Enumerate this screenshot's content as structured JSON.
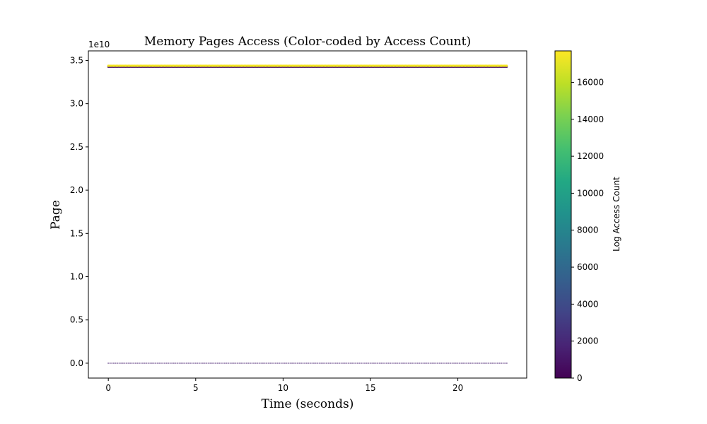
{
  "chart_data": {
    "type": "scatter",
    "title": "Memory Pages Access (Color-coded by Access Count)",
    "xlabel": "Time (seconds)",
    "ylabel": "Page",
    "y_offset_text": "1e10",
    "xlim": [
      -1.14,
      23.94
    ],
    "ylim": [
      -0.172,
      3.61
    ],
    "y_scale_multiplier": 10000000000.0,
    "x_ticks": [
      0,
      5,
      10,
      15,
      20
    ],
    "x_tick_labels": [
      "0",
      "5",
      "10",
      "15",
      "20"
    ],
    "y_ticks": [
      0.0,
      0.5,
      1.0,
      1.5,
      2.0,
      2.5,
      3.0,
      3.5
    ],
    "y_tick_labels": [
      "0.0",
      "0.5",
      "1.0",
      "1.5",
      "2.0",
      "2.5",
      "3.0",
      "3.5"
    ],
    "grid": false,
    "colormap": "viridis",
    "colorbar": {
      "label": "Log Access Count",
      "min": 0,
      "max": 17700,
      "ticks": [
        0,
        2000,
        4000,
        6000,
        8000,
        10000,
        12000,
        14000,
        16000
      ],
      "tick_labels": [
        "0",
        "2000",
        "4000",
        "6000",
        "8000",
        "10000",
        "12000",
        "14000",
        "16000"
      ]
    },
    "series": [
      {
        "y": 3.44,
        "x_range": [
          0,
          22.8
        ],
        "access_count": 17500
      },
      {
        "y": 3.435,
        "x_range": [
          0,
          22.8
        ],
        "access_count": 16800
      },
      {
        "y": 3.425,
        "x_range": [
          0,
          22.8
        ],
        "access_count": 400
      },
      {
        "y": 0.0,
        "x_range": [
          0,
          22.8
        ],
        "access_count": 1500
      }
    ]
  }
}
